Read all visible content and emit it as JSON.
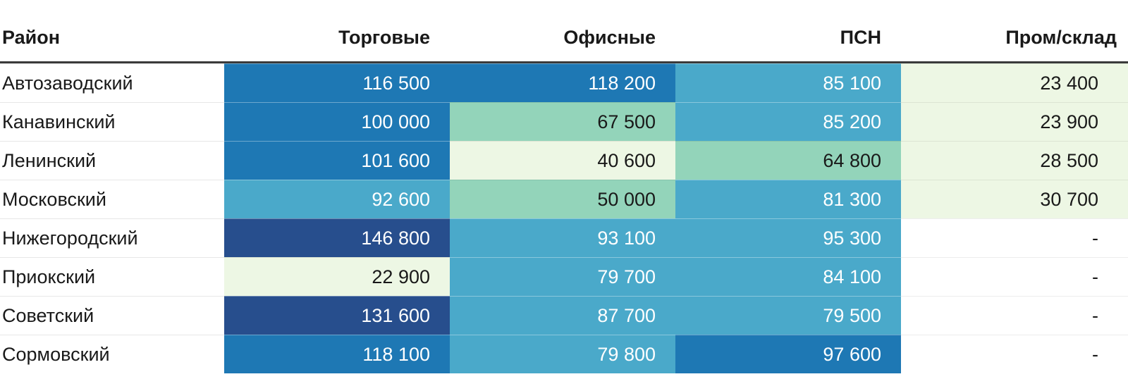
{
  "palette": {
    "navy": "#274e8d",
    "blue": "#1e78b4",
    "light_blue": "#4aa9ca",
    "green": "#93d4ba",
    "pale_green": "#edf7e4",
    "white": "#ffffff",
    "header_rule": "#3a3a3a",
    "text_dark": "#191919",
    "text_light": "#ffffff"
  },
  "table": {
    "columns": [
      {
        "key": "district",
        "label": "Район"
      },
      {
        "key": "torgovye",
        "label": "Торговые"
      },
      {
        "key": "ofisnye",
        "label": "Офисные"
      },
      {
        "key": "psn",
        "label": "ПСН"
      },
      {
        "key": "prom-sklad",
        "label": "Пром/склад"
      }
    ],
    "rows": [
      {
        "label": "Автозаводский",
        "cells": [
          {
            "value": "116 500",
            "bg": "#1e78b4",
            "text": "light"
          },
          {
            "value": "118 200",
            "bg": "#1e78b4",
            "text": "light"
          },
          {
            "value": "85 100",
            "bg": "#4aa9ca",
            "text": "light"
          },
          {
            "value": "23 400",
            "bg": "#edf7e4",
            "text": "dark"
          }
        ]
      },
      {
        "label": "Канавинский",
        "cells": [
          {
            "value": "100 000",
            "bg": "#1e78b4",
            "text": "light"
          },
          {
            "value": "67 500",
            "bg": "#93d4ba",
            "text": "dark"
          },
          {
            "value": "85 200",
            "bg": "#4aa9ca",
            "text": "light"
          },
          {
            "value": "23 900",
            "bg": "#edf7e4",
            "text": "dark"
          }
        ]
      },
      {
        "label": "Ленинский",
        "cells": [
          {
            "value": "101 600",
            "bg": "#1e78b4",
            "text": "light"
          },
          {
            "value": "40 600",
            "bg": "#edf7e4",
            "text": "dark"
          },
          {
            "value": "64 800",
            "bg": "#93d4ba",
            "text": "dark"
          },
          {
            "value": "28 500",
            "bg": "#edf7e4",
            "text": "dark"
          }
        ]
      },
      {
        "label": "Московский",
        "cells": [
          {
            "value": "92 600",
            "bg": "#4aa9ca",
            "text": "light"
          },
          {
            "value": "50 000",
            "bg": "#93d4ba",
            "text": "dark"
          },
          {
            "value": "81 300",
            "bg": "#4aa9ca",
            "text": "light"
          },
          {
            "value": "30 700",
            "bg": "#edf7e4",
            "text": "dark"
          }
        ]
      },
      {
        "label": "Нижегородский",
        "cells": [
          {
            "value": "146 800",
            "bg": "#274e8d",
            "text": "light"
          },
          {
            "value": "93 100",
            "bg": "#4aa9ca",
            "text": "light"
          },
          {
            "value": "95 300",
            "bg": "#4aa9ca",
            "text": "light"
          },
          {
            "value": "-",
            "bg": "#ffffff",
            "text": "dark"
          }
        ]
      },
      {
        "label": "Приокский",
        "cells": [
          {
            "value": "22 900",
            "bg": "#edf7e4",
            "text": "dark"
          },
          {
            "value": "79 700",
            "bg": "#4aa9ca",
            "text": "light"
          },
          {
            "value": "84 100",
            "bg": "#4aa9ca",
            "text": "light"
          },
          {
            "value": "-",
            "bg": "#ffffff",
            "text": "dark"
          }
        ]
      },
      {
        "label": "Советский",
        "cells": [
          {
            "value": "131 600",
            "bg": "#274e8d",
            "text": "light"
          },
          {
            "value": "87 700",
            "bg": "#4aa9ca",
            "text": "light"
          },
          {
            "value": "79 500",
            "bg": "#4aa9ca",
            "text": "light"
          },
          {
            "value": "-",
            "bg": "#ffffff",
            "text": "dark"
          }
        ]
      },
      {
        "label": "Сормовский",
        "cells": [
          {
            "value": "118 100",
            "bg": "#1e78b4",
            "text": "light"
          },
          {
            "value": "79 800",
            "bg": "#4aa9ca",
            "text": "light"
          },
          {
            "value": "97 600",
            "bg": "#1e78b4",
            "text": "light"
          },
          {
            "value": "-",
            "bg": "#ffffff",
            "text": "dark"
          }
        ]
      }
    ]
  },
  "chart_data": {
    "type": "table",
    "subtype": "heatmap-table",
    "columns": [
      "Район",
      "Торговые",
      "Офисные",
      "ПСН",
      "Пром/склад"
    ],
    "rows": [
      [
        "Автозаводский",
        116500,
        118200,
        85100,
        23400
      ],
      [
        "Канавинский",
        100000,
        67500,
        85200,
        23900
      ],
      [
        "Ленинский",
        101600,
        40600,
        64800,
        28500
      ],
      [
        "Московский",
        92600,
        50000,
        81300,
        30700
      ],
      [
        "Нижегородский",
        146800,
        93100,
        95300,
        null
      ],
      [
        "Приокский",
        22900,
        79700,
        84100,
        null
      ],
      [
        "Советский",
        131600,
        87700,
        79500,
        null
      ],
      [
        "Сормовский",
        118100,
        79800,
        97600,
        null
      ]
    ],
    "missing_value_marker": "-",
    "color_scale": {
      "kind": "sequential-bins",
      "bins": [
        {
          "range": "< 45 000",
          "color": "#edf7e4"
        },
        {
          "range": "45 000 – 70 000",
          "color": "#93d4ba"
        },
        {
          "range": "70 000 – 96 000",
          "color": "#4aa9ca"
        },
        {
          "range": "96 000 – 120 000",
          "color": "#1e78b4"
        },
        {
          "range": "> 120 000",
          "color": "#274e8d"
        }
      ]
    }
  }
}
